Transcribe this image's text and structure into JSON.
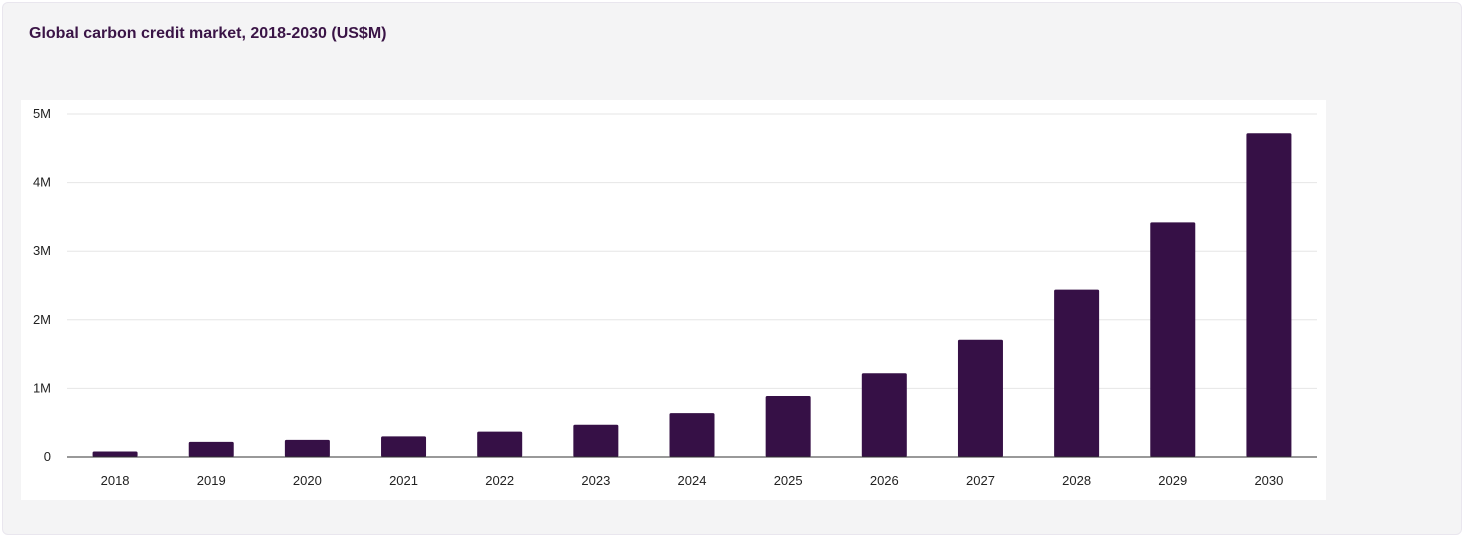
{
  "chart_data": {
    "type": "bar",
    "title": "Global carbon credit market, 2018-2030 (US$M)",
    "xlabel": "",
    "ylabel": "",
    "categories": [
      "2018",
      "2019",
      "2020",
      "2021",
      "2022",
      "2023",
      "2024",
      "2025",
      "2026",
      "2027",
      "2028",
      "2029",
      "2030"
    ],
    "values": [
      80000,
      220000,
      250000,
      300000,
      370000,
      470000,
      640000,
      890000,
      1220000,
      1710000,
      2440000,
      3420000,
      4720000
    ],
    "ylim": [
      0,
      5000000
    ],
    "yticks": [
      0,
      1000000,
      2000000,
      3000000,
      4000000,
      5000000
    ],
    "ytick_labels": [
      "0",
      "1M",
      "2M",
      "3M",
      "4M",
      "5M"
    ],
    "grid": true,
    "bar_color": "#361046",
    "gridline_color": "#e6e6e6",
    "axis_color": "#333333"
  }
}
